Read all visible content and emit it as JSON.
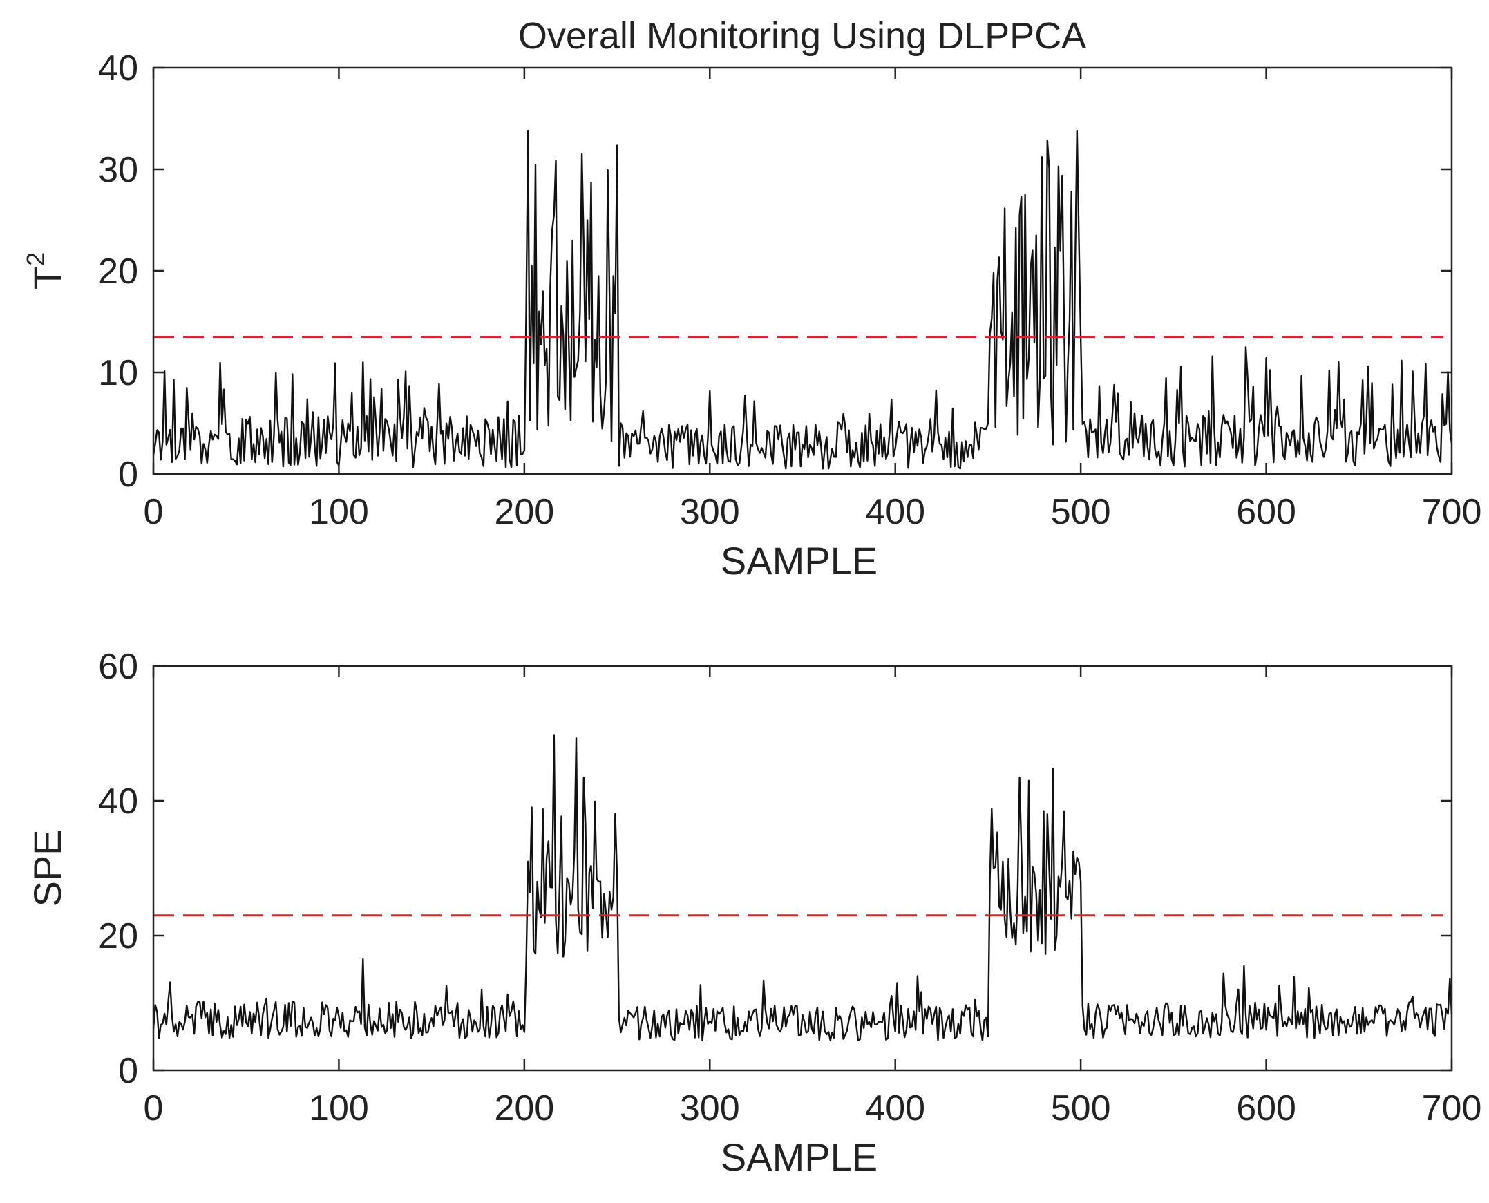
{
  "figure": {
    "title": "Overall Monitoring Using DLPPCA"
  },
  "colors": {
    "series": "#111111",
    "threshold": "#d9242b",
    "axis": "#222222"
  },
  "chart_data": [
    {
      "id": "t2",
      "type": "line",
      "title": "Overall Monitoring Using DLPPCA",
      "xlabel": "SAMPLE",
      "ylabel": "T",
      "ylabel_superscript": "2",
      "xlim": [
        0,
        700
      ],
      "ylim": [
        0,
        40
      ],
      "xticks": [
        0,
        100,
        200,
        300,
        400,
        500,
        600,
        700
      ],
      "yticks": [
        0,
        10,
        20,
        30,
        40
      ],
      "threshold": 13.5,
      "seed": 17,
      "segments": [
        {
          "from": 0,
          "to": 200,
          "mean": 3.2,
          "spread": 2.6,
          "spike_prob": 0.12,
          "spike_max": 11
        },
        {
          "from": 200,
          "to": 250,
          "mean": 10,
          "spread": 7,
          "spike_prob": 0.4,
          "spike_max": 33
        },
        {
          "from": 250,
          "to": 450,
          "mean": 2.8,
          "spread": 2.3,
          "spike_prob": 0.1,
          "spike_max": 9
        },
        {
          "from": 450,
          "to": 500,
          "mean": 9,
          "spread": 7,
          "spike_prob": 0.4,
          "spike_max": 33
        },
        {
          "from": 500,
          "to": 700,
          "mean": 3.3,
          "spread": 2.6,
          "spike_prob": 0.12,
          "spike_max": 12
        }
      ],
      "peaks": [
        {
          "x": 202,
          "y": 33.8
        },
        {
          "x": 204,
          "y": 20.5
        },
        {
          "x": 210,
          "y": 18
        },
        {
          "x": 214,
          "y": 18.5
        },
        {
          "x": 223,
          "y": 21
        },
        {
          "x": 226,
          "y": 23
        },
        {
          "x": 231,
          "y": 31.5
        },
        {
          "x": 234,
          "y": 25
        },
        {
          "x": 240,
          "y": 19.5
        },
        {
          "x": 248,
          "y": 19.5
        },
        {
          "x": 453,
          "y": 19.8
        },
        {
          "x": 467,
          "y": 25.5
        },
        {
          "x": 470,
          "y": 27.5
        },
        {
          "x": 476,
          "y": 23.5
        },
        {
          "x": 489,
          "y": 22
        },
        {
          "x": 495,
          "y": 27.8
        },
        {
          "x": 498,
          "y": 33.8
        },
        {
          "x": 589,
          "y": 12.5
        },
        {
          "x": 113,
          "y": 11
        }
      ]
    },
    {
      "id": "spe",
      "type": "line",
      "xlabel": "SAMPLE",
      "ylabel": "SPE",
      "xlim": [
        0,
        700
      ],
      "ylim": [
        0,
        60
      ],
      "xticks": [
        0,
        100,
        200,
        300,
        400,
        500,
        600,
        700
      ],
      "yticks": [
        0,
        20,
        40,
        60
      ],
      "threshold": 23,
      "seed": 41,
      "segments": [
        {
          "from": 0,
          "to": 200,
          "mean": 7.5,
          "spread": 2.8,
          "spike_prob": 0.08,
          "spike_max": 14
        },
        {
          "from": 200,
          "to": 250,
          "mean": 22,
          "spread": 7,
          "spike_prob": 0.25,
          "spike_max": 40
        },
        {
          "from": 250,
          "to": 450,
          "mean": 7,
          "spread": 2.6,
          "spike_prob": 0.08,
          "spike_max": 14
        },
        {
          "from": 450,
          "to": 500,
          "mean": 24,
          "spread": 7,
          "spike_prob": 0.25,
          "spike_max": 40
        },
        {
          "from": 500,
          "to": 700,
          "mean": 7.5,
          "spread": 2.7,
          "spike_prob": 0.08,
          "spike_max": 15
        }
      ],
      "peaks": [
        {
          "x": 202,
          "y": 31
        },
        {
          "x": 213,
          "y": 34
        },
        {
          "x": 216,
          "y": 49.8
        },
        {
          "x": 228,
          "y": 49.3
        },
        {
          "x": 232,
          "y": 43.5
        },
        {
          "x": 240,
          "y": 28
        },
        {
          "x": 246,
          "y": 26.5
        },
        {
          "x": 458,
          "y": 31
        },
        {
          "x": 467,
          "y": 43.5
        },
        {
          "x": 472,
          "y": 43
        },
        {
          "x": 485,
          "y": 44.8
        },
        {
          "x": 496,
          "y": 32.5
        },
        {
          "x": 113,
          "y": 16.5
        },
        {
          "x": 588,
          "y": 15.5
        },
        {
          "x": 412,
          "y": 14
        }
      ]
    }
  ]
}
